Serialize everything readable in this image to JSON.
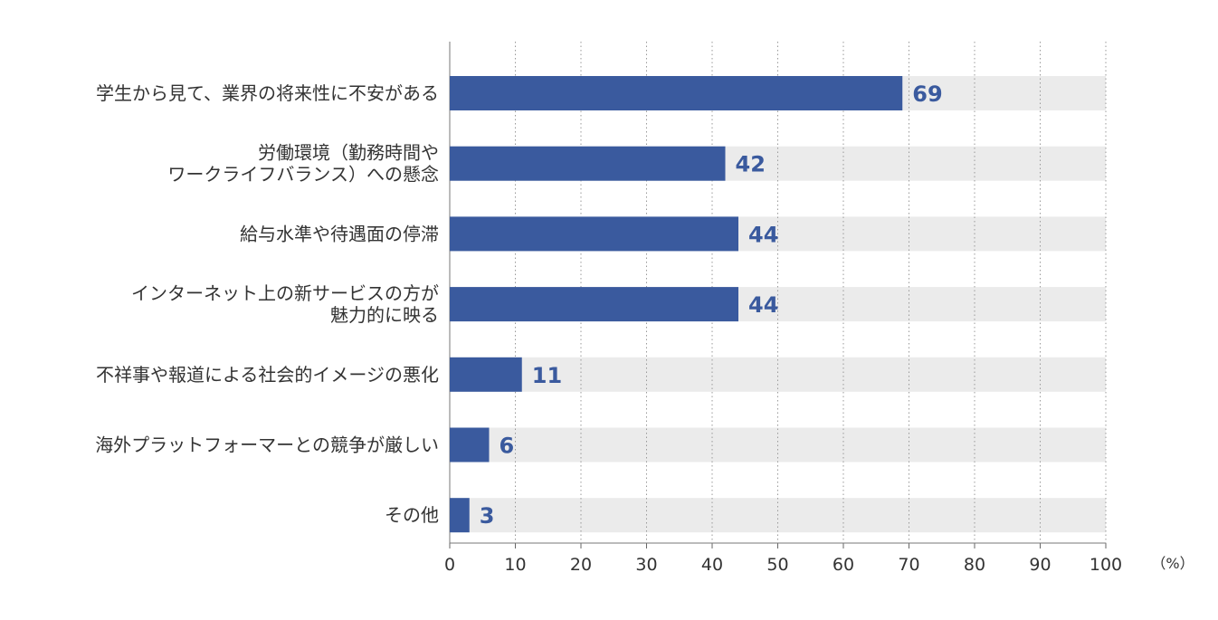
{
  "chart_data": {
    "type": "bar",
    "orientation": "horizontal",
    "categories": [
      [
        "学生から見て、業界の将来性に不安がある"
      ],
      [
        "労働環境（勤務時間や",
        "ワークライフバランス）への懸念"
      ],
      [
        "給与水準や待遇面の停滞"
      ],
      [
        "インターネット上の新サービスの方が",
        "魅力的に映る"
      ],
      [
        "不祥事や報道による社会的イメージの悪化"
      ],
      [
        "海外プラットフォーマーとの競争が厳しい"
      ],
      [
        "その他"
      ]
    ],
    "values": [
      69,
      42,
      44,
      44,
      11,
      6,
      3
    ],
    "value_labels": [
      "69",
      "42",
      "44",
      "44",
      "11",
      "6",
      "3"
    ],
    "xlim": [
      0,
      100
    ],
    "xticks": [
      0,
      10,
      20,
      30,
      40,
      50,
      60,
      70,
      80,
      90,
      100
    ],
    "xtick_labels": [
      "0",
      "10",
      "20",
      "30",
      "40",
      "50",
      "60",
      "70",
      "80",
      "90",
      "100"
    ],
    "unit": "（%）",
    "grid": true,
    "colors": {
      "bar": "#3a5a9e",
      "track": "#ebebeb",
      "label": "#3a5a9e",
      "grid": "#999999"
    }
  }
}
